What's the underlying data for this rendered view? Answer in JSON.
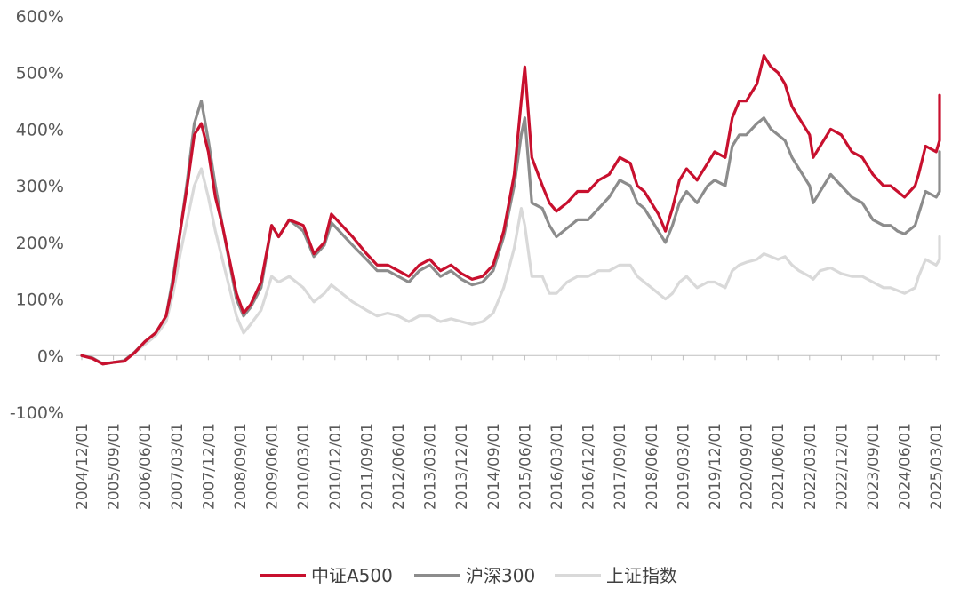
{
  "chart_data": {
    "type": "line",
    "title": "",
    "xlabel": "",
    "ylabel": "",
    "ylim": [
      -100,
      600
    ],
    "y_ticks": [
      "600%",
      "500%",
      "400%",
      "300%",
      "200%",
      "100%",
      "0%",
      "-100%"
    ],
    "y_tick_values": [
      600,
      500,
      400,
      300,
      200,
      100,
      0,
      -100
    ],
    "x_ticks": [
      "2004/12/01",
      "2005/09/01",
      "2006/06/01",
      "2007/03/01",
      "2007/12/01",
      "2008/09/01",
      "2009/06/01",
      "2010/03/01",
      "2010/12/01",
      "2011/09/01",
      "2012/06/01",
      "2013/03/01",
      "2013/12/01",
      "2014/09/01",
      "2015/06/01",
      "2016/03/01",
      "2016/12/01",
      "2017/09/01",
      "2018/06/01",
      "2019/03/01",
      "2019/12/01",
      "2020/09/01",
      "2021/06/01",
      "2022/03/01",
      "2022/12/01",
      "2023/09/01",
      "2024/06/01",
      "2025/03/01"
    ],
    "legend_position": "bottom",
    "grid": false,
    "x": [
      "2004/12",
      "2005/03",
      "2005/06",
      "2005/09",
      "2005/12",
      "2006/03",
      "2006/06",
      "2006/09",
      "2006/12",
      "2007/02",
      "2007/04",
      "2007/06",
      "2007/08",
      "2007/10",
      "2007/12",
      "2008/02",
      "2008/04",
      "2008/06",
      "2008/08",
      "2008/10",
      "2008/12",
      "2009/03",
      "2009/06",
      "2009/08",
      "2009/11",
      "2010/03",
      "2010/06",
      "2010/09",
      "2010/11",
      "2011/02",
      "2011/05",
      "2011/09",
      "2011/12",
      "2012/03",
      "2012/06",
      "2012/09",
      "2012/12",
      "2013/03",
      "2013/06",
      "2013/09",
      "2013/12",
      "2014/03",
      "2014/06",
      "2014/09",
      "2014/12",
      "2015/03",
      "2015/05",
      "2015/06",
      "2015/08",
      "2015/11",
      "2016/01",
      "2016/03",
      "2016/06",
      "2016/09",
      "2016/12",
      "2017/03",
      "2017/06",
      "2017/09",
      "2017/12",
      "2018/02",
      "2018/04",
      "2018/06",
      "2018/08",
      "2018/10",
      "2018/12",
      "2019/02",
      "2019/04",
      "2019/07",
      "2019/10",
      "2019/12",
      "2020/03",
      "2020/05",
      "2020/07",
      "2020/09",
      "2020/12",
      "2021/02",
      "2021/04",
      "2021/06",
      "2021/08",
      "2021/10",
      "2021/12",
      "2022/03",
      "2022/04",
      "2022/06",
      "2022/09",
      "2022/12",
      "2023/03",
      "2023/06",
      "2023/09",
      "2023/12",
      "2024/02",
      "2024/04",
      "2024/06",
      "2024/09",
      "2024/10",
      "2024/12",
      "2025/03",
      "2025/06",
      "2025/08",
      "2025/10"
    ],
    "series": [
      {
        "name": "中证A500",
        "color": "#c8102e",
        "values": [
          0,
          -5,
          -15,
          -12,
          -10,
          5,
          25,
          40,
          70,
          130,
          220,
          300,
          390,
          410,
          360,
          280,
          230,
          170,
          110,
          75,
          90,
          130,
          230,
          210,
          240,
          230,
          180,
          200,
          250,
          230,
          210,
          180,
          160,
          160,
          150,
          140,
          160,
          170,
          150,
          160,
          145,
          135,
          140,
          160,
          220,
          320,
          450,
          510,
          350,
          300,
          270,
          255,
          270,
          290,
          290,
          310,
          320,
          350,
          340,
          300,
          290,
          270,
          250,
          220,
          260,
          310,
          330,
          310,
          340,
          360,
          350,
          420,
          450,
          450,
          480,
          530,
          510,
          500,
          480,
          440,
          420,
          390,
          350,
          370,
          400,
          390,
          360,
          350,
          320,
          300,
          300,
          290,
          280,
          300,
          320,
          370,
          360,
          380,
          420,
          460
        ]
      },
      {
        "name": "沪深300",
        "color": "#8c8c8c",
        "values": [
          0,
          -4,
          -15,
          -12,
          -9,
          6,
          25,
          40,
          70,
          140,
          220,
          310,
          410,
          450,
          380,
          300,
          230,
          165,
          100,
          70,
          85,
          120,
          230,
          210,
          240,
          220,
          175,
          195,
          235,
          215,
          195,
          170,
          150,
          150,
          140,
          130,
          150,
          160,
          140,
          150,
          135,
          125,
          130,
          150,
          210,
          300,
          390,
          420,
          270,
          260,
          230,
          210,
          225,
          240,
          240,
          260,
          280,
          310,
          300,
          270,
          260,
          240,
          220,
          200,
          230,
          270,
          290,
          270,
          300,
          310,
          300,
          370,
          390,
          390,
          410,
          420,
          400,
          390,
          380,
          350,
          330,
          300,
          270,
          290,
          320,
          300,
          280,
          270,
          240,
          230,
          230,
          220,
          215,
          230,
          250,
          290,
          280,
          290,
          320,
          360
        ]
      },
      {
        "name": "上证指数",
        "color": "#d9d9d9",
        "values": [
          0,
          -4,
          -14,
          -12,
          -9,
          5,
          20,
          35,
          60,
          110,
          180,
          240,
          300,
          330,
          280,
          220,
          170,
          120,
          70,
          40,
          55,
          80,
          140,
          130,
          140,
          120,
          95,
          110,
          125,
          110,
          95,
          80,
          70,
          75,
          70,
          60,
          70,
          70,
          60,
          65,
          60,
          55,
          60,
          75,
          120,
          190,
          260,
          230,
          140,
          140,
          110,
          110,
          130,
          140,
          140,
          150,
          150,
          160,
          160,
          140,
          130,
          120,
          110,
          100,
          110,
          130,
          140,
          120,
          130,
          130,
          120,
          150,
          160,
          165,
          170,
          180,
          175,
          170,
          175,
          160,
          150,
          140,
          135,
          150,
          155,
          145,
          140,
          140,
          130,
          120,
          120,
          115,
          110,
          120,
          140,
          170,
          160,
          170,
          190,
          210
        ]
      }
    ]
  }
}
